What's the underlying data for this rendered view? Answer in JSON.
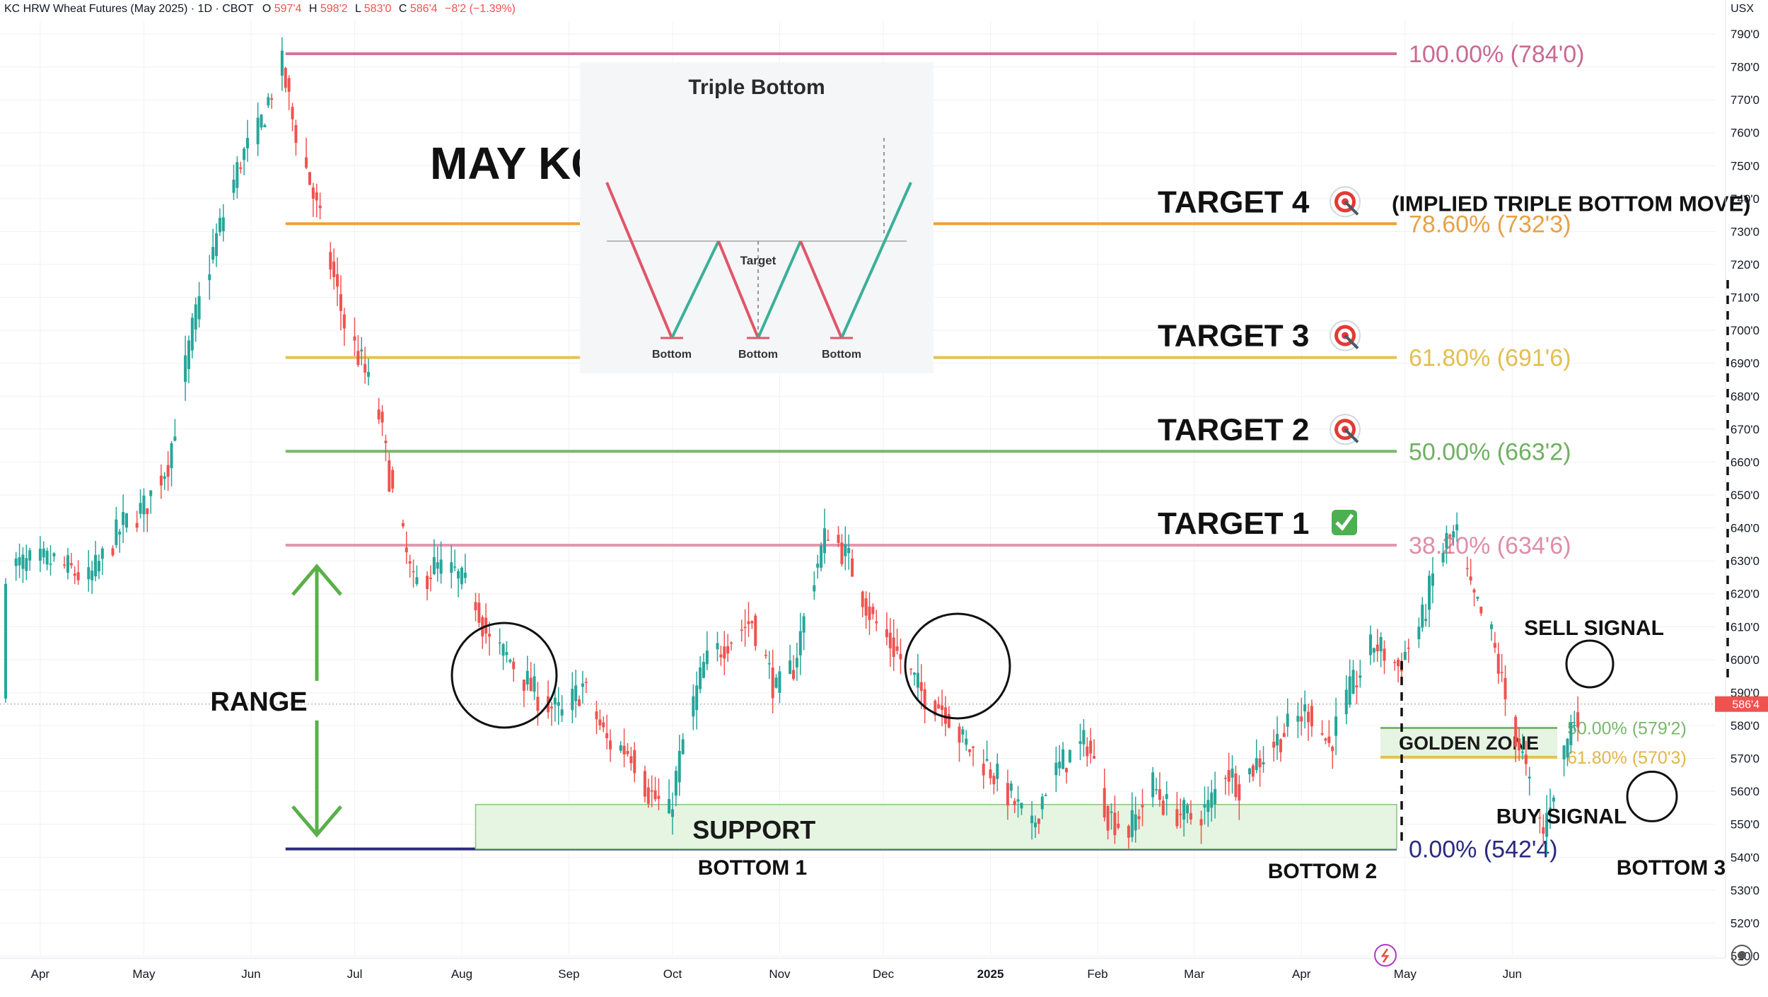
{
  "header": {
    "symbol": "KC HRW Wheat Futures (May 2025) · 1D · CBOT",
    "o_label": "O",
    "o_value": "597'4",
    "h_label": "H",
    "h_value": "598'2",
    "l_label": "L",
    "l_value": "583'0",
    "c_label": "C",
    "c_value": "586'4",
    "change": "−8'2 (−1.39%)",
    "currency": "USX"
  },
  "colors": {
    "up": "#26a69a",
    "down": "#ef5350",
    "fib_100": "#d4739b",
    "fib_786": "#f0a030",
    "fib_618": "#e6c050",
    "fib_50": "#78b86a",
    "fib_382": "#e596ae",
    "fib_0": "#2a2a80",
    "range_arrow": "#5ab04a",
    "zone_fill": "#e6f4e2",
    "zone_border": "#8cc482",
    "last_price_bg": "#ef5350"
  },
  "chart_data": {
    "type": "candlestick",
    "title": "MAY KC",
    "y_axis": {
      "min": 505,
      "max": 792,
      "ticks": [
        "510'0",
        "520'0",
        "530'0",
        "540'0",
        "550'0",
        "560'0",
        "570'0",
        "580'0",
        "590'0",
        "600'0",
        "610'0",
        "620'0",
        "630'0",
        "640'0",
        "650'0",
        "660'0",
        "670'0",
        "680'0",
        "690'0",
        "700'0",
        "710'0",
        "720'0",
        "730'0",
        "740'0",
        "750'0",
        "760'0",
        "770'0",
        "780'0",
        "790'0"
      ],
      "tick_values": [
        510,
        520,
        530,
        540,
        550,
        560,
        570,
        580,
        590,
        600,
        610,
        620,
        630,
        640,
        650,
        660,
        670,
        680,
        690,
        700,
        710,
        720,
        730,
        740,
        750,
        760,
        770,
        780,
        790
      ],
      "last_price": 586.5,
      "last_price_label": "586'4"
    },
    "x_axis": {
      "labels": [
        "Apr",
        "May",
        "Jun",
        "Jul",
        "Aug",
        "Sep",
        "Oct",
        "Nov",
        "Dec",
        "2025",
        "Feb",
        "Mar",
        "Apr",
        "May",
        "Jun"
      ],
      "bold": [
        false,
        false,
        false,
        false,
        false,
        false,
        false,
        false,
        false,
        true,
        false,
        false,
        false,
        false,
        false
      ],
      "dates": [
        "2024-04-01",
        "2024-05-01",
        "2024-06-01",
        "2024-07-01",
        "2024-08-01",
        "2024-09-01",
        "2024-10-01",
        "2024-11-01",
        "2024-12-01",
        "2025-01-01",
        "2025-02-01",
        "2025-03-01",
        "2025-04-01",
        "2025-05-01",
        "2025-06-01"
      ],
      "start": "2024-03-22",
      "end": "2025-06-21"
    },
    "price_path": [
      [
        "2024-03-22",
        628
      ],
      [
        "2024-04-05",
        630
      ],
      [
        "2024-04-15",
        624
      ],
      [
        "2024-04-25",
        641
      ],
      [
        "2024-05-01",
        646
      ],
      [
        "2024-05-08",
        660
      ],
      [
        "2024-05-15",
        700
      ],
      [
        "2024-05-22",
        728
      ],
      [
        "2024-05-29",
        752
      ],
      [
        "2024-06-03",
        760
      ],
      [
        "2024-06-07",
        773
      ],
      [
        "2024-06-10",
        780
      ],
      [
        "2024-06-13",
        764
      ],
      [
        "2024-06-18",
        745
      ],
      [
        "2024-06-24",
        720
      ],
      [
        "2024-06-28",
        702
      ],
      [
        "2024-07-03",
        690
      ],
      [
        "2024-07-08",
        674
      ],
      [
        "2024-07-12",
        650
      ],
      [
        "2024-07-18",
        622
      ],
      [
        "2024-07-24",
        628
      ],
      [
        "2024-07-30",
        626
      ],
      [
        "2024-08-05",
        618
      ],
      [
        "2024-08-09",
        605
      ],
      [
        "2024-08-15",
        600
      ],
      [
        "2024-08-22",
        590
      ],
      [
        "2024-08-30",
        583
      ],
      [
        "2024-09-05",
        592
      ],
      [
        "2024-09-12",
        575
      ],
      [
        "2024-09-19",
        572
      ],
      [
        "2024-09-24",
        560
      ],
      [
        "2024-09-30",
        553
      ],
      [
        "2024-10-04",
        575
      ],
      [
        "2024-10-10",
        598
      ],
      [
        "2024-10-17",
        606
      ],
      [
        "2024-10-24",
        612
      ],
      [
        "2024-10-31",
        590
      ],
      [
        "2024-11-05",
        598
      ],
      [
        "2024-11-11",
        626
      ],
      [
        "2024-11-15",
        640
      ],
      [
        "2024-11-21",
        630
      ],
      [
        "2024-11-28",
        612
      ],
      [
        "2024-12-05",
        602
      ],
      [
        "2024-12-12",
        590
      ],
      [
        "2024-12-19",
        585
      ],
      [
        "2024-12-24",
        575
      ],
      [
        "2024-12-31",
        568
      ],
      [
        "2025-01-07",
        558
      ],
      [
        "2025-01-13",
        548
      ],
      [
        "2025-01-17",
        562
      ],
      [
        "2025-01-23",
        570
      ],
      [
        "2025-01-29",
        575
      ],
      [
        "2025-02-04",
        553
      ],
      [
        "2025-02-10",
        548
      ],
      [
        "2025-02-17",
        562
      ],
      [
        "2025-02-21",
        555
      ],
      [
        "2025-02-28",
        552
      ],
      [
        "2025-03-05",
        555
      ],
      [
        "2025-03-10",
        567
      ],
      [
        "2025-03-14",
        562
      ],
      [
        "2025-03-20",
        570
      ],
      [
        "2025-03-27",
        578
      ],
      [
        "2025-04-03",
        585
      ],
      [
        "2025-04-09",
        574
      ],
      [
        "2025-04-15",
        590
      ],
      [
        "2025-04-22",
        605
      ],
      [
        "2025-04-29",
        598
      ],
      [
        "2025-05-06",
        612
      ],
      [
        "2025-05-09",
        625
      ],
      [
        "2025-05-13",
        636
      ],
      [
        "2025-05-16",
        638
      ],
      [
        "2025-05-20",
        620
      ],
      [
        "2025-05-26",
        607
      ],
      [
        "2025-05-30",
        588
      ],
      [
        "2025-06-04",
        570
      ],
      [
        "2025-06-07",
        556
      ],
      [
        "2025-06-10",
        547
      ],
      [
        "2025-06-12",
        558
      ],
      [
        "2025-06-15",
        568
      ],
      [
        "2025-06-18",
        580
      ],
      [
        "2025-06-21",
        586.5
      ]
    ],
    "fib_levels": [
      {
        "key": "fib_100",
        "value": 784,
        "label": "100.00% (784'0)"
      },
      {
        "key": "fib_786",
        "value": 732.375,
        "label": "78.60% (732'3)"
      },
      {
        "key": "fib_618",
        "value": 691.75,
        "label": "61.80% (691'6)"
      },
      {
        "key": "fib_50",
        "value": 663.25,
        "label": "50.00% (663'2)"
      },
      {
        "key": "fib_382",
        "value": 634.75,
        "label": "38.20% (634'6)"
      },
      {
        "key": "fib_0",
        "value": 542.5,
        "label": "0.00% (542'4)"
      }
    ],
    "golden_zone": {
      "label": "GOLDEN ZONE",
      "upper": 579.25,
      "upper_label": "50.00% (579'2)",
      "lower": 570.375,
      "lower_label": "61.80% (570'3)"
    },
    "support": {
      "label": "SUPPORT",
      "upper": 556,
      "lower": 542.5
    },
    "range": {
      "label": "RANGE",
      "upper": 634.75,
      "lower": 542.5
    },
    "targets": [
      {
        "label": "TARGET 4",
        "value": 732.375,
        "status": "target",
        "note": "(IMPLIED TRIPLE BOTTOM MOVE)"
      },
      {
        "label": "TARGET 3",
        "value": 691.75,
        "status": "target",
        "note": ""
      },
      {
        "label": "TARGET 2",
        "value": 663.25,
        "status": "target",
        "note": ""
      },
      {
        "label": "TARGET 1",
        "value": 634.75,
        "status": "hit",
        "note": ""
      }
    ],
    "annotations": {
      "sell_signal": "SELL SIGNAL",
      "buy_signal": "BUY SIGNAL",
      "bottom_1": "BOTTOM 1",
      "bottom_2": "BOTTOM 2",
      "bottom_3": "BOTTOM 3"
    },
    "inset": {
      "title": "Triple Bottom",
      "target_label": "Target",
      "bottom_labels": [
        "Bottom",
        "Bottom",
        "Bottom"
      ]
    }
  }
}
